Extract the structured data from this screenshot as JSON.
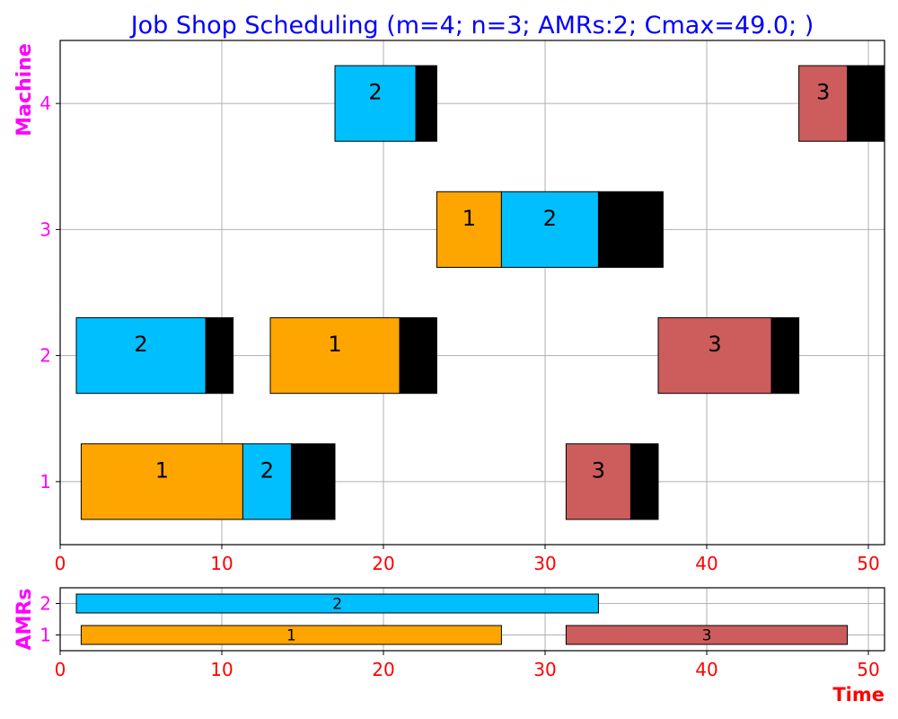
{
  "chart_data": [
    {
      "type": "gantt",
      "title": "Job Shop Scheduling (m=4; n=3; AMRs:2; Cmax=49.0; )",
      "ylabel": "Machine",
      "xlim": [
        0,
        51
      ],
      "ylim": [
        0.5,
        4.5
      ],
      "xticks": [
        0,
        10,
        20,
        30,
        40,
        50
      ],
      "yticks": [
        1,
        2,
        3,
        4
      ],
      "grid": true,
      "colors": {
        "1": "#ffa500",
        "2": "#00bfff",
        "3": "#cd5c5c",
        "tail": "#000000"
      },
      "operations": [
        {
          "machine": 1,
          "job": "1",
          "start": 1.3,
          "end": 11.3,
          "tail_end": null
        },
        {
          "machine": 1,
          "job": "2",
          "start": 11.3,
          "end": 14.3,
          "tail_end": 17.0
        },
        {
          "machine": 1,
          "job": "3",
          "start": 31.3,
          "end": 35.3,
          "tail_end": 37.0
        },
        {
          "machine": 2,
          "job": "2",
          "start": 1.0,
          "end": 9.0,
          "tail_end": 10.7
        },
        {
          "machine": 2,
          "job": "1",
          "start": 13.0,
          "end": 21.0,
          "tail_end": 23.3
        },
        {
          "machine": 2,
          "job": "3",
          "start": 37.0,
          "end": 44.0,
          "tail_end": 45.7
        },
        {
          "machine": 3,
          "job": "1",
          "start": 23.3,
          "end": 27.3,
          "tail_end": null
        },
        {
          "machine": 3,
          "job": "2",
          "start": 27.3,
          "end": 33.3,
          "tail_end": 37.3
        },
        {
          "machine": 4,
          "job": "2",
          "start": 17.0,
          "end": 22.0,
          "tail_end": 23.3
        },
        {
          "machine": 4,
          "job": "3",
          "start": 45.7,
          "end": 48.7,
          "tail_end": 51.0
        }
      ]
    },
    {
      "type": "gantt",
      "ylabel": "AMRs",
      "xlabel": "Time",
      "xlim": [
        0,
        51
      ],
      "ylim": [
        0.5,
        2.5
      ],
      "xticks": [
        0,
        10,
        20,
        30,
        40,
        50
      ],
      "yticks": [
        1,
        2
      ],
      "grid": true,
      "operations": [
        {
          "amr": 1,
          "job": "1",
          "start": 1.3,
          "end": 27.3
        },
        {
          "amr": 1,
          "job": "3",
          "start": 31.3,
          "end": 48.7
        },
        {
          "amr": 2,
          "job": "2",
          "start": 1.0,
          "end": 33.3
        }
      ]
    }
  ]
}
